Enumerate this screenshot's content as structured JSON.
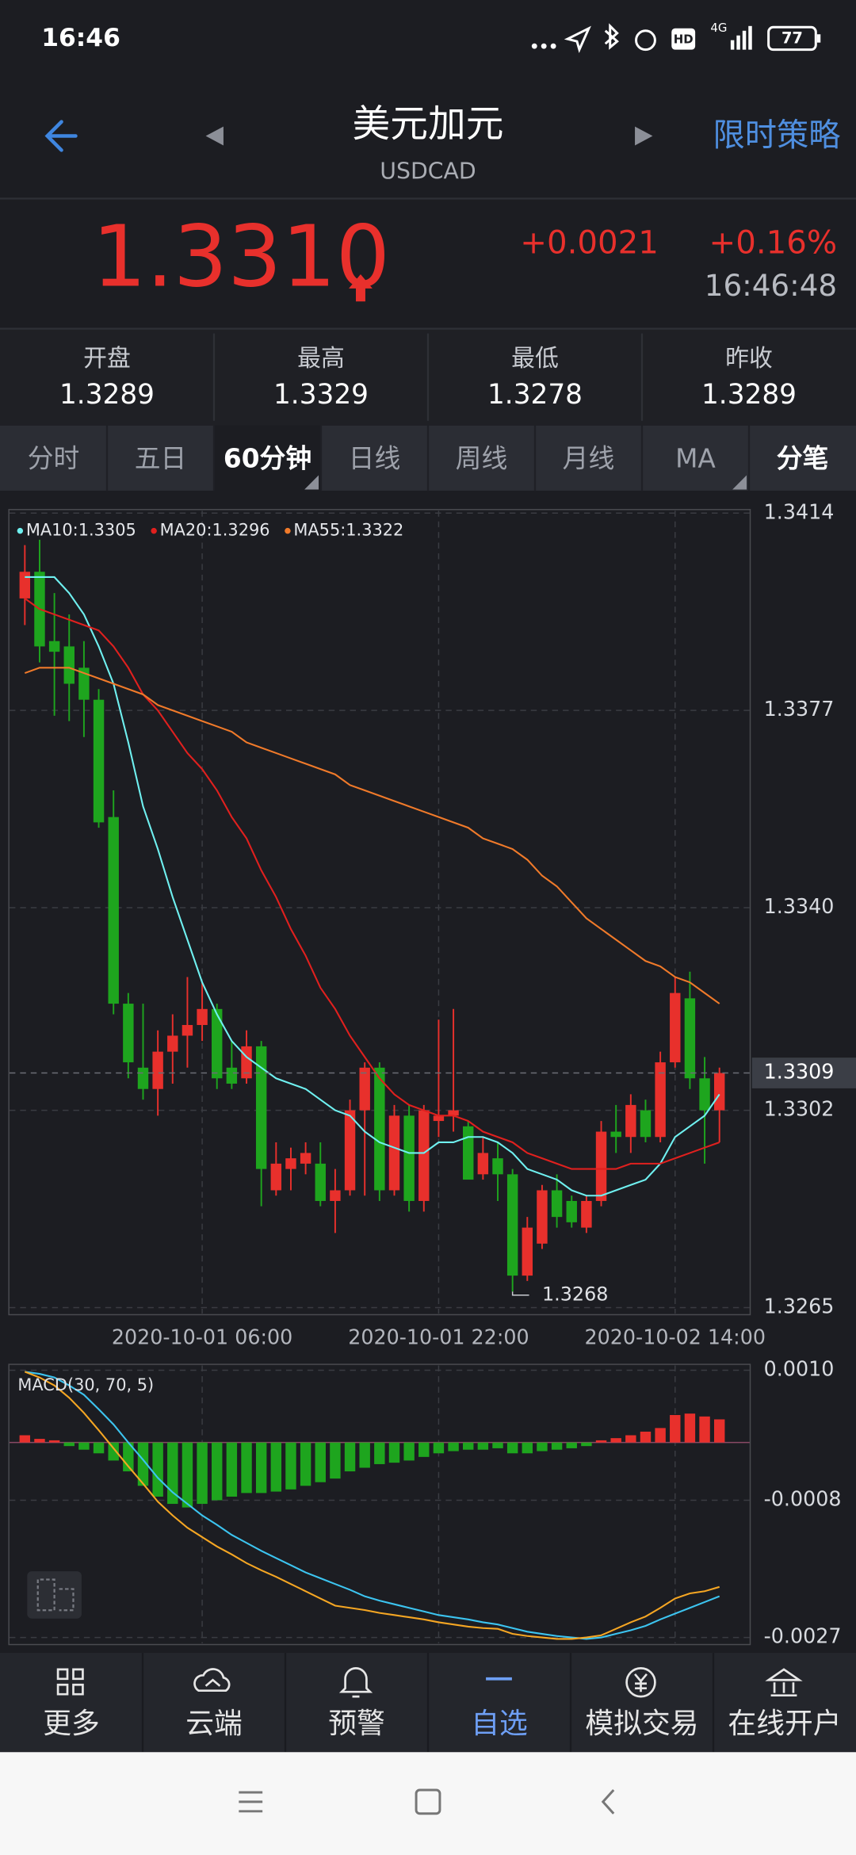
{
  "status_bar": {
    "time": "16:46",
    "hd": "HD",
    "network": "4G",
    "battery": "77"
  },
  "header": {
    "title": "美元加元",
    "subtitle": "USDCAD",
    "action": "限时策略"
  },
  "quote": {
    "price": "1.3310",
    "change": "+0.0021",
    "change_pct": "+0.16%",
    "time": "16:46:48"
  },
  "stats": [
    {
      "label": "开盘",
      "value": "1.3289"
    },
    {
      "label": "最高",
      "value": "1.3329"
    },
    {
      "label": "最低",
      "value": "1.3278"
    },
    {
      "label": "昨收",
      "value": "1.3289"
    }
  ],
  "tabs": [
    {
      "label": "分时"
    },
    {
      "label": "五日"
    },
    {
      "label": "60分钟",
      "selected": true
    },
    {
      "label": "日线"
    },
    {
      "label": "周线"
    },
    {
      "label": "月线"
    },
    {
      "label": "MA"
    },
    {
      "label": "分笔",
      "highlight": true
    }
  ],
  "chart_data": [
    {
      "type": "candlestick",
      "categories": [
        null,
        null,
        null,
        null,
        null,
        null,
        null,
        null,
        null,
        null,
        null,
        null,
        "2020-10-01 06:00",
        null,
        null,
        null,
        null,
        null,
        null,
        null,
        null,
        null,
        null,
        null,
        null,
        null,
        null,
        null,
        "2020-10-01 22:00",
        null,
        null,
        null,
        null,
        null,
        null,
        null,
        null,
        null,
        null,
        null,
        null,
        null,
        null,
        null,
        "2020-10-02 14:00",
        null,
        null,
        null
      ],
      "open": [
        1.3398,
        1.3403,
        1.339,
        1.3389,
        1.3385,
        1.3379,
        1.3357,
        1.3322,
        1.331,
        1.3306,
        1.3313,
        1.3316,
        1.3318,
        1.3321,
        1.331,
        1.3308,
        1.3314,
        1.3287,
        1.3291,
        1.3292,
        1.3292,
        1.3285,
        1.3287,
        1.3302,
        1.331,
        1.3287,
        1.3301,
        1.3285,
        1.33,
        1.3301,
        1.3299,
        1.329,
        1.3293,
        1.329,
        1.3271,
        1.3277,
        1.3287,
        1.3285,
        1.328,
        1.3285,
        1.3298,
        1.3297,
        1.3302,
        1.3297,
        1.3311,
        1.3323,
        1.3308,
        1.3302
      ],
      "high": [
        1.3408,
        1.3409,
        1.3399,
        1.3395,
        1.339,
        1.3381,
        1.3362,
        1.3324,
        1.3322,
        1.3317,
        1.332,
        1.3327,
        1.3326,
        1.3322,
        1.3315,
        1.3317,
        1.3315,
        1.3296,
        1.3295,
        1.3296,
        1.3296,
        1.3291,
        1.3304,
        1.3311,
        1.3311,
        1.3303,
        1.3303,
        1.3303,
        1.3319,
        1.3321,
        1.33,
        1.3297,
        1.3296,
        1.3291,
        1.3282,
        1.3288,
        1.329,
        1.3286,
        1.3286,
        1.33,
        1.3303,
        1.3305,
        1.3304,
        1.3313,
        1.3327,
        1.3328,
        1.3312,
        1.331
      ],
      "low": [
        1.3393,
        1.3386,
        1.3376,
        1.3375,
        1.3372,
        1.3355,
        1.332,
        1.3308,
        1.3304,
        1.3301,
        1.3307,
        1.331,
        1.3315,
        1.3306,
        1.3306,
        1.3307,
        1.3284,
        1.3286,
        1.3287,
        1.329,
        1.3284,
        1.3279,
        1.3286,
        1.3286,
        1.3285,
        1.3286,
        1.3283,
        1.3283,
        1.3297,
        1.3298,
        1.3289,
        1.3289,
        1.3285,
        1.3268,
        1.327,
        1.3276,
        1.328,
        1.328,
        1.3279,
        1.3284,
        1.3294,
        1.3294,
        1.3296,
        1.3296,
        1.331,
        1.3306,
        1.3292,
        1.3296
      ],
      "close": [
        1.3403,
        1.3389,
        1.3388,
        1.3382,
        1.3379,
        1.3356,
        1.3322,
        1.3311,
        1.3306,
        1.3313,
        1.3316,
        1.3318,
        1.3321,
        1.3308,
        1.3307,
        1.3314,
        1.3291,
        1.3292,
        1.3293,
        1.3294,
        1.3285,
        1.3287,
        1.3302,
        1.331,
        1.3287,
        1.3301,
        1.3285,
        1.3302,
        1.3301,
        1.3302,
        1.3289,
        1.3294,
        1.329,
        1.3271,
        1.328,
        1.3287,
        1.3282,
        1.3281,
        1.3285,
        1.3298,
        1.3297,
        1.3303,
        1.3297,
        1.3311,
        1.3324,
        1.3308,
        1.3302,
        1.3309
      ],
      "up_color": "#e8302c",
      "down_color": "#1ea51e",
      "series": [
        {
          "name": "MA10:1.3305",
          "color": "#6ff0f0",
          "values": [
            1.3402,
            1.3402,
            1.3402,
            1.3399,
            1.3395,
            1.3389,
            1.3382,
            1.3371,
            1.3359,
            1.3351,
            1.3342,
            1.3334,
            1.3326,
            1.332,
            1.3315,
            1.3312,
            1.331,
            1.3308,
            1.3307,
            1.3306,
            1.3304,
            1.3302,
            1.3301,
            1.3298,
            1.3296,
            1.3295,
            1.3294,
            1.3294,
            1.3296,
            1.3296,
            1.3297,
            1.3297,
            1.3296,
            1.3294,
            1.3291,
            1.329,
            1.3289,
            1.3287,
            1.3286,
            1.3286,
            1.3287,
            1.3288,
            1.3289,
            1.3292,
            1.3297,
            1.3299,
            1.3301,
            1.3305
          ]
        },
        {
          "name": "MA20:1.3296",
          "color": "#e0201e",
          "values": [
            1.3398,
            1.3396,
            1.3395,
            1.3394,
            1.3393,
            1.3392,
            1.3389,
            1.3385,
            1.338,
            1.3377,
            1.3373,
            1.3369,
            1.3366,
            1.3362,
            1.3357,
            1.3353,
            1.3347,
            1.3342,
            1.3336,
            1.3331,
            1.3325,
            1.3321,
            1.3316,
            1.3312,
            1.3308,
            1.3305,
            1.3303,
            1.3302,
            1.3301,
            1.3301,
            1.33,
            1.3298,
            1.3297,
            1.3296,
            1.3294,
            1.3293,
            1.3292,
            1.3291,
            1.3291,
            1.3291,
            1.3291,
            1.3292,
            1.3292,
            1.3292,
            1.3293,
            1.3294,
            1.3295,
            1.3296
          ]
        },
        {
          "name": "MA55:1.3322",
          "color": "#f07a2a",
          "values": [
            1.3384,
            1.3385,
            1.3385,
            1.3385,
            1.3384,
            1.3383,
            1.3382,
            1.3381,
            1.338,
            1.3378,
            1.3377,
            1.3376,
            1.3375,
            1.3374,
            1.3373,
            1.3371,
            1.337,
            1.3369,
            1.3368,
            1.3367,
            1.3366,
            1.3365,
            1.3363,
            1.3362,
            1.3361,
            1.336,
            1.3359,
            1.3358,
            1.3357,
            1.3356,
            1.3355,
            1.3353,
            1.3352,
            1.3351,
            1.3349,
            1.3346,
            1.3344,
            1.3341,
            1.3338,
            1.3336,
            1.3334,
            1.3332,
            1.333,
            1.3329,
            1.3327,
            1.3326,
            1.3324,
            1.3322
          ]
        }
      ],
      "ylim": [
        1.3265,
        1.3414
      ],
      "yticks": [
        1.3414,
        1.3377,
        {
          "value": 1.334,
          "label": "1.3340"
        },
        1.3302,
        1.3265
      ],
      "grid": true
    },
    {
      "type": "bar",
      "title": "MACD(30, 70, 5)",
      "values": [
        0.0001,
        5e-05,
        3e-05,
        -5e-05,
        -0.0001,
        -0.00015,
        -0.00025,
        -0.0004,
        -0.0006,
        -0.00075,
        -0.00085,
        -0.0009,
        -0.00085,
        -0.0008,
        -0.00075,
        -0.0007,
        -0.0007,
        -0.00068,
        -0.00065,
        -0.0006,
        -0.00055,
        -0.0005,
        -0.0004,
        -0.00035,
        -0.0003,
        -0.00028,
        -0.00025,
        -0.0002,
        -0.00015,
        -0.00012,
        -0.0001,
        -0.0001,
        -8e-05,
        -0.00015,
        -0.00015,
        -0.00012,
        -0.0001,
        -8e-05,
        -5e-05,
        3e-05,
        6e-05,
        0.0001,
        0.00015,
        0.0002,
        0.00038,
        0.0004,
        0.00036,
        0.00032
      ],
      "up_color": "#e8302c",
      "down_color": "#1ea51e",
      "series": [
        {
          "color": "#3cc4f0",
          "values": [
            0.00098,
            0.00095,
            0.0009,
            0.00079,
            0.00066,
            0.00046,
            0.00025,
            0,
            -0.00024,
            -0.00049,
            -0.00069,
            -0.00085,
            -0.00101,
            -0.00114,
            -0.00128,
            -0.00139,
            -0.0015,
            -0.0016,
            -0.0017,
            -0.0018,
            -0.00188,
            -0.00196,
            -0.00204,
            -0.00213,
            -0.00219,
            -0.00224,
            -0.00229,
            -0.00234,
            -0.00239,
            -0.00242,
            -0.00245,
            -0.00249,
            -0.00252,
            -0.00257,
            -0.00262,
            -0.00265,
            -0.00268,
            -0.0027,
            -0.00272,
            -0.0027,
            -0.00265,
            -0.0026,
            -0.00254,
            -0.00245,
            -0.00237,
            -0.00229,
            -0.00221,
            -0.00213
          ]
        },
        {
          "color": "#f5a623",
          "values": [
            0.00098,
            0.0009,
            0.00079,
            0.00062,
            0.00041,
            0.00017,
            -8e-05,
            -0.00033,
            -0.00057,
            -0.00082,
            -0.00101,
            -0.00118,
            -0.00131,
            -0.00144,
            -0.00155,
            -0.00167,
            -0.00177,
            -0.00186,
            -0.00196,
            -0.00206,
            -0.00216,
            -0.00226,
            -0.00229,
            -0.00232,
            -0.00236,
            -0.00239,
            -0.00242,
            -0.00245,
            -0.00249,
            -0.00252,
            -0.00255,
            -0.00257,
            -0.00258,
            -0.00265,
            -0.00268,
            -0.0027,
            -0.00272,
            -0.00272,
            -0.0027,
            -0.00267,
            -0.00258,
            -0.00249,
            -0.00241,
            -0.00229,
            -0.00216,
            -0.00209,
            -0.00206,
            -0.002
          ]
        }
      ],
      "ylim": [
        -0.0027,
        0.001
      ],
      "yticks": [
        {
          "value": 0.001,
          "label": "0.0010"
        },
        -0.0008,
        -0.0027
      ],
      "grid": true
    }
  ],
  "nav": [
    {
      "label": "更多"
    },
    {
      "label": "云端"
    },
    {
      "label": "预警"
    },
    {
      "label": "自选",
      "active": true
    },
    {
      "label": "模拟交易"
    },
    {
      "label": "在线开户"
    }
  ]
}
